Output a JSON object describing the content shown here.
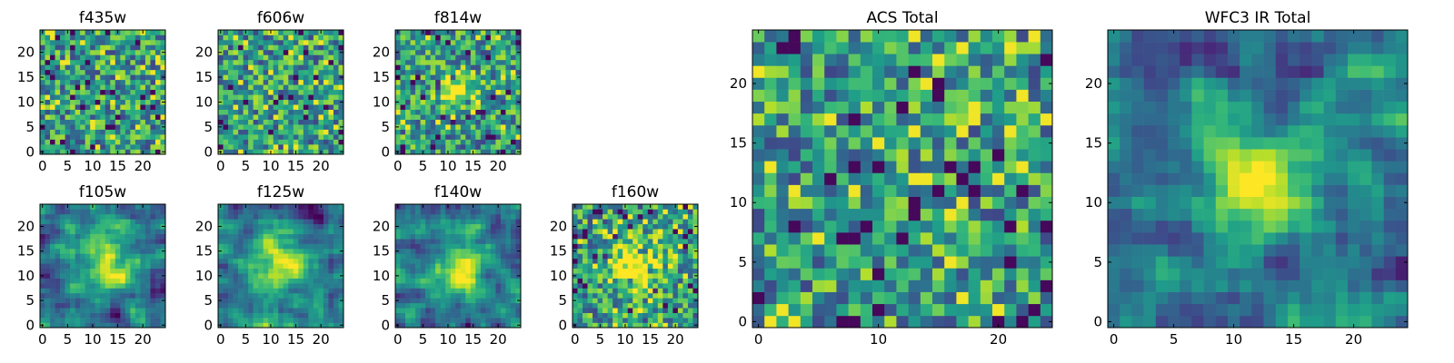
{
  "figure": {
    "pixels_per_side": 25
  },
  "chart_data": [
    {
      "type": "heatmap",
      "title": "f435w",
      "seed": 435,
      "source_radius": 0,
      "noise": 0.45,
      "x_ticks": [
        0,
        5,
        10,
        15,
        20
      ],
      "y_ticks": [
        0,
        5,
        10,
        15,
        20
      ],
      "xlim": [
        -0.5,
        24.5
      ],
      "ylim": [
        -0.5,
        24.5
      ]
    },
    {
      "type": "heatmap",
      "title": "f606w",
      "seed": 606,
      "source_radius": 0,
      "noise": 0.4,
      "x_ticks": [
        0,
        5,
        10,
        15,
        20
      ],
      "y_ticks": [
        0,
        5,
        10,
        15,
        20
      ],
      "xlim": [
        -0.5,
        24.5
      ],
      "ylim": [
        -0.5,
        24.5
      ]
    },
    {
      "type": "heatmap",
      "title": "f814w",
      "seed": 814,
      "source_radius": 2.5,
      "noise": 0.45,
      "x_ticks": [
        0,
        5,
        10,
        15,
        20
      ],
      "y_ticks": [
        0,
        5,
        10,
        15,
        20
      ],
      "xlim": [
        -0.5,
        24.5
      ],
      "ylim": [
        -0.5,
        24.5
      ]
    },
    {
      "type": "heatmap",
      "title": "f105w",
      "seed": 105,
      "source_radius": 4.5,
      "noise": 0.3,
      "x_ticks": [
        0,
        5,
        10,
        15,
        20
      ],
      "y_ticks": [
        0,
        5,
        10,
        15,
        20
      ],
      "xlim": [
        -0.5,
        24.5
      ],
      "ylim": [
        -0.5,
        24.5
      ]
    },
    {
      "type": "heatmap",
      "title": "f125w",
      "seed": 125,
      "source_radius": 4.5,
      "noise": 0.3,
      "x_ticks": [
        0,
        5,
        10,
        15,
        20
      ],
      "y_ticks": [
        0,
        5,
        10,
        15,
        20
      ],
      "xlim": [
        -0.5,
        24.5
      ],
      "ylim": [
        -0.5,
        24.5
      ]
    },
    {
      "type": "heatmap",
      "title": "f140w",
      "seed": 140,
      "source_radius": 4.0,
      "noise": 0.32,
      "x_ticks": [
        0,
        5,
        10,
        15,
        20
      ],
      "y_ticks": [
        0,
        5,
        10,
        15,
        20
      ],
      "xlim": [
        -0.5,
        24.5
      ],
      "ylim": [
        -0.5,
        24.5
      ]
    },
    {
      "type": "heatmap",
      "title": "f160w",
      "seed": 160,
      "source_radius": 3.5,
      "noise": 0.35,
      "x_ticks": [
        0,
        5,
        10,
        15,
        20
      ],
      "y_ticks": [
        0,
        5,
        10,
        15,
        20
      ],
      "xlim": [
        -0.5,
        24.5
      ],
      "ylim": [
        -0.5,
        24.5
      ]
    },
    {
      "type": "heatmap",
      "title": "ACS Total",
      "seed": 999,
      "source_radius": 0,
      "noise": 0.45,
      "x_ticks": [
        0,
        10,
        20
      ],
      "y_ticks": [
        0,
        5,
        10,
        15,
        20
      ],
      "xlim": [
        -0.5,
        24.5
      ],
      "ylim": [
        -0.5,
        24.5
      ]
    },
    {
      "type": "heatmap",
      "title": "WFC3 IR Total",
      "seed": 777,
      "source_radius": 3.5,
      "noise": 0.15,
      "x_ticks": [
        0,
        5,
        10,
        15,
        20
      ],
      "y_ticks": [
        0,
        5,
        10,
        15,
        20
      ],
      "xlim": [
        -0.5,
        24.5
      ],
      "ylim": [
        -0.5,
        24.5
      ]
    }
  ]
}
